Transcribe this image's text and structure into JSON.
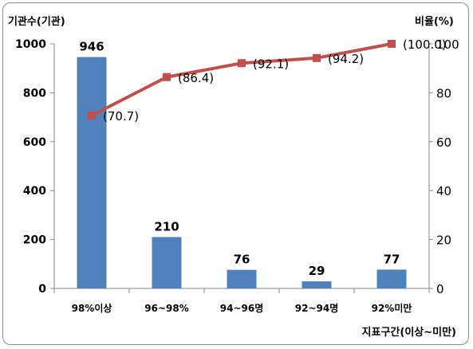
{
  "chart_data": {
    "type": "bar+line",
    "categories": [
      "98%이상",
      "96~98%",
      "94~96명",
      "92~94명",
      "92%미만"
    ],
    "series": [
      {
        "type": "bar",
        "values": [
          946,
          210,
          76,
          29,
          77
        ],
        "color": "#4f81bd",
        "axis": "left"
      },
      {
        "type": "line",
        "values": [
          70.7,
          86.4,
          92.1,
          94.2,
          100.0
        ],
        "color": "#c0504d",
        "axis": "right"
      }
    ],
    "bar_labels": [
      "946",
      "210",
      "76",
      "29",
      "77"
    ],
    "line_labels": [
      "(70.7)",
      "(86.4)",
      "(92.1)",
      "(94.2)",
      "(100.0)"
    ],
    "y_left": {
      "label": "기관수(기관)",
      "min": 0,
      "max": 1000,
      "ticks": [
        0,
        200,
        400,
        600,
        800,
        1000
      ]
    },
    "y_right": {
      "label": "비율(%)",
      "min": 0,
      "max": 100,
      "ticks": [
        0,
        20,
        40,
        60,
        80,
        100
      ]
    },
    "xlabel": "지표구간(이상~미만)",
    "grid": false
  }
}
